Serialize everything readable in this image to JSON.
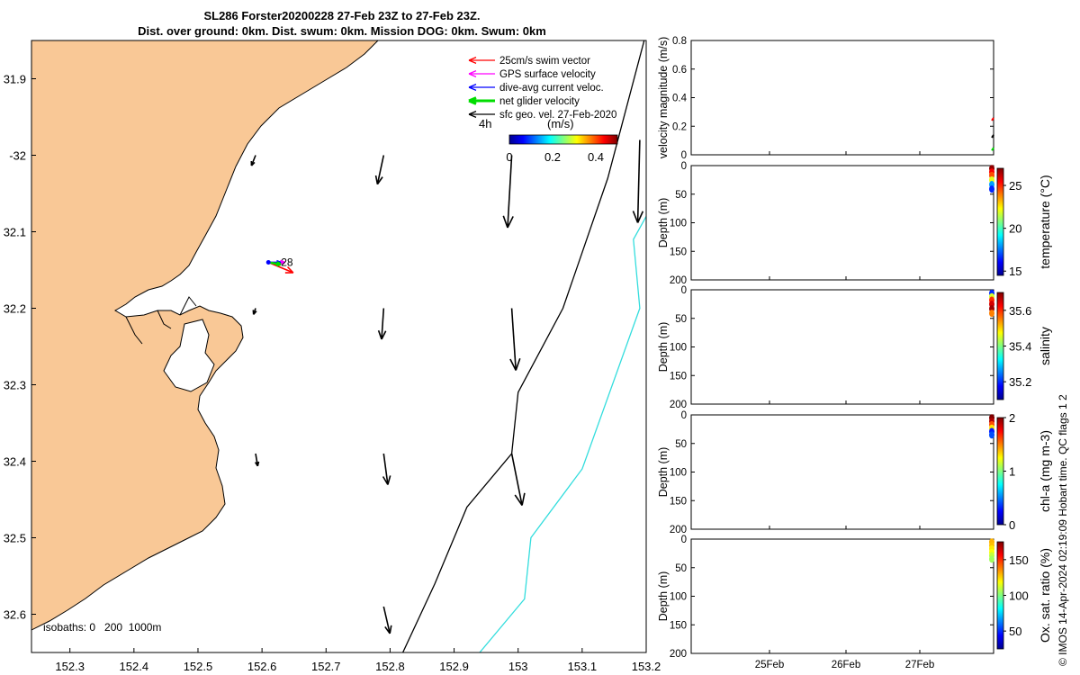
{
  "title": {
    "line1": "SL286 Forster20200228 27-Feb 23Z to 27-Feb 23Z.",
    "line2": "Dist. over ground: 0km. Dist. swum: 0km. Mission DOG: 0km. Swum: 0km"
  },
  "copyright": "© IMOS 14-Apr-2024 02:19:09 Hobart time. QC flags 1  2",
  "colors": {
    "land": "#f9c896",
    "isobath_200": "#000000",
    "isobath_1000": "#33dddd",
    "swim_vector": "#ff0000",
    "gps_surface": "#ff00ff",
    "dive_avg": "#0000ff",
    "net_glider": "#00dd00",
    "geo_velocity": "#000000"
  },
  "chart_data": [
    {
      "type": "map",
      "xlim": [
        152.24,
        153.2
      ],
      "ylim": [
        -32.65,
        -31.85
      ],
      "xticks": [
        152.3,
        152.4,
        152.5,
        152.6,
        152.7,
        152.8,
        152.9,
        153.0,
        153.1,
        153.2
      ],
      "xtick_labels": [
        "152.3",
        "152.4",
        "152.5",
        "152.6",
        "152.7",
        "152.8",
        "152.9",
        "153",
        "153.1",
        "153.2"
      ],
      "yticks": [
        -31.9,
        -32.0,
        -32.1,
        -32.2,
        -32.3,
        -32.4,
        -32.5,
        -32.6
      ],
      "ytick_labels": [
        "31.9",
        "-32",
        "32.1",
        "32.2",
        "32.3",
        "32.4",
        "32.5",
        "32.6"
      ],
      "legend": {
        "placement": "top-right",
        "entries": [
          "25cm/s swim vector",
          "GPS surface velocity",
          "dive-avg current veloc.",
          "net glider velocity",
          "sfc geo. vel. 27-Feb-2020"
        ],
        "time_label": "4h",
        "colorbar_label": "(m/s)",
        "colorbar_ticks": [
          "0",
          "0.2",
          "0.4"
        ],
        "colorbar_range": [
          0,
          0.5
        ]
      },
      "isobaths_label": "isobaths: 0   200  1000m",
      "glider_position": {
        "lon": 152.61,
        "lat": -32.14,
        "label": "28"
      },
      "isobath_200m": [
        [
          152.82,
          -32.65
        ],
        [
          152.87,
          -32.56
        ],
        [
          152.92,
          -32.46
        ],
        [
          152.99,
          -32.39
        ],
        [
          153.0,
          -32.31
        ],
        [
          153.07,
          -32.2
        ],
        [
          153.14,
          -32.03
        ],
        [
          153.2,
          -31.84
        ]
      ],
      "isobath_1000m": [
        [
          152.94,
          -32.65
        ],
        [
          153.01,
          -32.58
        ],
        [
          153.02,
          -32.5
        ],
        [
          153.1,
          -32.41
        ],
        [
          153.19,
          -32.2
        ],
        [
          153.18,
          -32.11
        ],
        [
          153.2,
          -32.08
        ]
      ],
      "geo_velocity_arrows": [
        {
          "lon": 152.59,
          "lat": -32.0,
          "u": -0.02,
          "v": -0.05
        },
        {
          "lon": 152.79,
          "lat": -32.0,
          "u": -0.03,
          "v": -0.14
        },
        {
          "lon": 152.99,
          "lat": -32.0,
          "u": -0.02,
          "v": -0.35
        },
        {
          "lon": 153.19,
          "lat": -31.98,
          "u": -0.01,
          "v": -0.4
        },
        {
          "lon": 152.59,
          "lat": -32.2,
          "u": -0.01,
          "v": -0.03
        },
        {
          "lon": 152.79,
          "lat": -32.2,
          "u": -0.01,
          "v": -0.15
        },
        {
          "lon": 152.99,
          "lat": -32.2,
          "u": 0.02,
          "v": -0.3
        },
        {
          "lon": 152.59,
          "lat": -32.39,
          "u": 0.01,
          "v": -0.06
        },
        {
          "lon": 152.79,
          "lat": -32.39,
          "u": 0.02,
          "v": -0.15
        },
        {
          "lon": 152.99,
          "lat": -32.39,
          "u": 0.05,
          "v": -0.25
        },
        {
          "lon": 152.79,
          "lat": -32.59,
          "u": 0.03,
          "v": -0.13
        }
      ],
      "glider_vectors": [
        {
          "series": "swim",
          "u": 0.12,
          "v": -0.05
        },
        {
          "series": "gps",
          "u": 0.08,
          "v": 0.0
        },
        {
          "series": "dive_avg",
          "u": 0.06,
          "v": 0.0
        },
        {
          "series": "net",
          "u": 0.06,
          "v": -0.01
        }
      ]
    },
    {
      "type": "line",
      "ylabel": "velocity magnitude (m/s)",
      "ylim": [
        0,
        0.8
      ],
      "yticks": [
        "0",
        "0.2",
        "0.4",
        "0.6",
        "0.8"
      ]
    },
    {
      "type": "scatter",
      "ylabel": "Depth (m)",
      "ylim": [
        200,
        0
      ],
      "yticks": [
        "0",
        "50",
        "100",
        "150",
        "200"
      ],
      "colorbar_label": "temperature (°C)",
      "colorbar_range": [
        14.5,
        27
      ],
      "colorbar_ticks": [
        "15",
        "20",
        "25"
      ],
      "points": [
        {
          "depth": 2,
          "value": 26.8
        },
        {
          "depth": 8,
          "value": 25.5
        },
        {
          "depth": 14,
          "value": 24.5
        },
        {
          "depth": 22,
          "value": 22
        },
        {
          "depth": 30,
          "value": 18
        },
        {
          "depth": 38,
          "value": 16.5
        }
      ]
    },
    {
      "type": "scatter",
      "ylabel": "Depth (m)",
      "ylim": [
        200,
        0
      ],
      "yticks": [
        "0",
        "50",
        "100",
        "150",
        "200"
      ],
      "colorbar_label": "salinity",
      "colorbar_range": [
        35.1,
        35.7
      ],
      "colorbar_ticks": [
        "35.2",
        "35.4",
        "35.6"
      ],
      "points": [
        {
          "depth": 3,
          "value": 35.2
        },
        {
          "depth": 9,
          "value": 35.45
        },
        {
          "depth": 15,
          "value": 35.6
        },
        {
          "depth": 22,
          "value": 35.65
        },
        {
          "depth": 30,
          "value": 35.68
        },
        {
          "depth": 38,
          "value": 35.55
        }
      ]
    },
    {
      "type": "scatter",
      "ylabel": "Depth (m)",
      "ylim": [
        200,
        0
      ],
      "yticks": [
        "0",
        "50",
        "100",
        "150",
        "200"
      ],
      "colorbar_label": "chl-a (mg m-3)",
      "colorbar_range": [
        0,
        2
      ],
      "colorbar_ticks": [
        "0",
        "1",
        "2"
      ],
      "points": [
        {
          "depth": 2,
          "value": 2.0
        },
        {
          "depth": 8,
          "value": 1.9
        },
        {
          "depth": 14,
          "value": 1.6
        },
        {
          "depth": 20,
          "value": 1.3
        },
        {
          "depth": 26,
          "value": 0.3
        },
        {
          "depth": 32,
          "value": 0.4
        }
      ]
    },
    {
      "type": "scatter",
      "ylabel": "Depth (m)",
      "ylim": [
        200,
        0
      ],
      "yticks": [
        "0",
        "50",
        "100",
        "150",
        "200"
      ],
      "colorbar_label": "Ox. sat. ratio (%)",
      "colorbar_range": [
        25,
        175
      ],
      "colorbar_ticks": [
        "50",
        "100",
        "150"
      ],
      "xtick_labels": [
        "25Feb",
        "26Feb",
        "27Feb"
      ],
      "points": [
        {
          "depth": 2,
          "value": 130
        },
        {
          "depth": 8,
          "value": 128
        },
        {
          "depth": 14,
          "value": 122
        },
        {
          "depth": 20,
          "value": 118
        },
        {
          "depth": 26,
          "value": 110
        },
        {
          "depth": 32,
          "value": 105
        }
      ]
    }
  ]
}
